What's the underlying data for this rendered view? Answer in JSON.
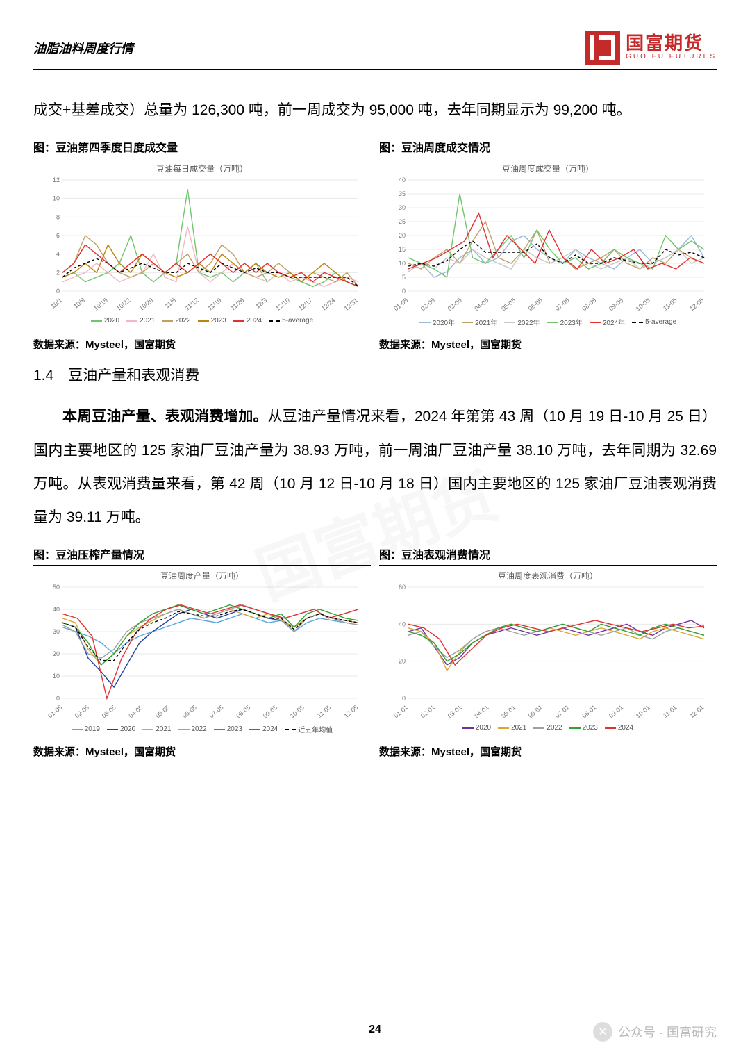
{
  "header": {
    "title": "油脂油料周度行情",
    "logo_cn": "国富期货",
    "logo_en": "GUO FU FUTURES"
  },
  "intro_text": "成交+基差成交）总量为 126,300 吨，前一周成交为 95,000 吨，去年同期显示为 99,200 吨。",
  "section_1_4": "1.4　豆油产量和表观消费",
  "para2_bold": "本周豆油产量、表观消费增加。",
  "para2_rest": "从豆油产量情况来看，2024 年第第 43 周（10 月 19 日-10 月 25 日）国内主要地区的 125 家油厂豆油产量为 38.93 万吨，前一周油厂豆油产量 38.10 万吨，去年同期为 32.69 万吨。从表观消费量来看，第 42 周（10 月 12 日-10 月 18 日）国内主要地区的 125 家油厂豆油表观消费量为 39.11 万吨。",
  "chart1": {
    "title": "图：豆油第四季度日度成交量",
    "subtitle": "豆油每日成交量（万吨）",
    "source": "数据来源：Mysteel，国富期货",
    "type": "line",
    "ylim": [
      0,
      12
    ],
    "ytick_step": 2,
    "x_labels": [
      "10/1",
      "10/8",
      "10/15",
      "10/22",
      "10/29",
      "11/5",
      "11/12",
      "11/19",
      "11/26",
      "12/3",
      "12/10",
      "12/17",
      "12/24",
      "12/31"
    ],
    "colors": {
      "2020": "#70c46c",
      "2021": "#f4b6c2",
      "2022": "#c0a060",
      "2023": "#b8860b",
      "2024": "#e03030",
      "5-average": "#000000"
    },
    "legend": [
      "2020",
      "2021",
      "2022",
      "2023",
      "2024",
      "5-average"
    ],
    "series": {
      "2020": [
        1.5,
        2,
        1,
        1.5,
        2,
        3,
        6,
        2,
        1,
        2,
        3,
        11,
        2,
        1.5,
        2,
        1,
        2,
        3,
        1,
        2,
        1.5,
        1,
        0.5,
        1,
        2,
        1,
        0.5
      ],
      "2021": [
        1,
        1.5,
        2,
        3,
        2,
        1,
        1.5,
        2,
        4,
        1.5,
        1,
        7,
        2,
        1,
        2,
        3,
        2,
        1.5,
        1,
        2,
        1,
        1.5,
        1,
        0.5,
        1,
        1.5,
        1
      ],
      "2022": [
        2,
        3,
        6,
        5,
        3,
        2,
        1.5,
        2,
        3,
        2,
        3,
        4,
        2,
        3,
        5,
        4,
        2,
        1.5,
        2,
        3,
        2,
        1,
        2,
        1.5,
        1,
        2,
        0.5
      ],
      "2023": [
        1.5,
        2,
        3,
        2,
        5,
        3,
        2,
        4,
        3,
        2,
        1.5,
        2,
        3,
        2,
        4,
        3,
        2,
        3,
        2,
        1.5,
        2,
        1,
        2,
        3,
        2,
        1,
        0.5
      ],
      "2024": [
        2,
        3,
        5,
        4,
        3,
        2,
        3,
        4,
        3,
        2,
        3,
        2,
        3,
        4,
        3,
        2,
        3,
        2,
        3,
        2,
        1.5,
        2,
        1,
        2,
        1.5,
        1,
        0.5
      ],
      "5-average": [
        1.5,
        2.5,
        3,
        3.5,
        3,
        2,
        2.5,
        3,
        2.5,
        2,
        2,
        3,
        2.5,
        2,
        3,
        2.5,
        2,
        2.5,
        2,
        2,
        1.5,
        1.5,
        1.5,
        1.5,
        1.5,
        1.5,
        0.5
      ]
    }
  },
  "chart2": {
    "title": "图：豆油周度成交情况",
    "subtitle": "豆油周度成交量（万吨）",
    "source": "数据来源：Mysteel，国富期货",
    "type": "line",
    "ylim": [
      0,
      40
    ],
    "ytick_step": 5,
    "x_labels": [
      "01-05",
      "02-05",
      "03-05",
      "04-05",
      "05-05",
      "06-05",
      "07-05",
      "08-05",
      "09-05",
      "10-05",
      "11-05",
      "12-05"
    ],
    "colors": {
      "2020年": "#9bb8d9",
      "2021年": "#c0a060",
      "2022年": "#c8c8c8",
      "2023年": "#70c46c",
      "2024年": "#e03030",
      "5-average": "#000000"
    },
    "legend": [
      "2020年",
      "2021年",
      "2022年",
      "2023年",
      "2024年",
      "5-average"
    ],
    "series": {
      "2020年": [
        8,
        10,
        5,
        7,
        12,
        15,
        10,
        12,
        18,
        20,
        15,
        12,
        10,
        15,
        12,
        10,
        8,
        12,
        15,
        10,
        12,
        15,
        20,
        12
      ],
      "2021年": [
        10,
        8,
        12,
        15,
        10,
        18,
        25,
        12,
        10,
        15,
        22,
        10,
        12,
        8,
        10,
        12,
        15,
        10,
        8,
        12,
        10,
        15,
        12,
        10
      ],
      "2022年": [
        7,
        10,
        8,
        12,
        10,
        15,
        12,
        10,
        8,
        15,
        12,
        10,
        12,
        15,
        10,
        8,
        10,
        12,
        8,
        10,
        12,
        15,
        10,
        12
      ],
      "2023年": [
        12,
        10,
        8,
        5,
        35,
        12,
        10,
        15,
        20,
        12,
        22,
        15,
        10,
        12,
        8,
        10,
        15,
        12,
        10,
        8,
        20,
        15,
        18,
        15
      ],
      "2024年": [
        8,
        10,
        12,
        15,
        18,
        28,
        12,
        20,
        15,
        10,
        22,
        12,
        8,
        15,
        10,
        12,
        15,
        8,
        10,
        8,
        12,
        10
      ],
      "5-average": [
        9,
        10,
        9,
        11,
        15,
        18,
        14,
        14,
        14,
        14,
        17,
        12,
        10,
        13,
        10,
        10,
        12,
        11,
        10,
        10,
        15,
        13,
        14,
        12
      ]
    }
  },
  "chart3": {
    "title": "图：豆油压榨产量情况",
    "subtitle": "豆油周度产量（万吨）",
    "source": "数据来源：Mysteel，国富期货",
    "type": "line",
    "ylim": [
      0,
      50
    ],
    "ytick_step": 10,
    "x_labels": [
      "01-05",
      "02-05",
      "03-05",
      "04-05",
      "05-05",
      "06-05",
      "07-05",
      "08-05",
      "09-05",
      "10-05",
      "11-05",
      "12-05"
    ],
    "colors": {
      "2019": "#5aa5d8",
      "2020": "#2040a0",
      "2021": "#d8a838",
      "2022": "#a0a0a0",
      "2023": "#30a030",
      "2024": "#e03030",
      "近五年均值": "#000000"
    },
    "legend": [
      "2019",
      "2020",
      "2021",
      "2022",
      "2023",
      "2024",
      "近五年均值"
    ],
    "series": {
      "2019": [
        32,
        30,
        28,
        25,
        20,
        25,
        28,
        30,
        32,
        34,
        36,
        35,
        34,
        36,
        38,
        36,
        34,
        35,
        30,
        34,
        36,
        35,
        34,
        33
      ],
      "2020": [
        34,
        32,
        18,
        12,
        5,
        15,
        25,
        30,
        34,
        38,
        40,
        38,
        36,
        38,
        40,
        38,
        36,
        35,
        32,
        36,
        38,
        36,
        35,
        34
      ],
      "2021": [
        36,
        34,
        22,
        15,
        20,
        28,
        32,
        35,
        38,
        40,
        38,
        36,
        38,
        40,
        38,
        36,
        38,
        35,
        32,
        36,
        38,
        36,
        35,
        34
      ],
      "2022": [
        33,
        30,
        20,
        18,
        22,
        30,
        34,
        36,
        38,
        40,
        38,
        36,
        38,
        40,
        42,
        40,
        38,
        36,
        30,
        36,
        38,
        36,
        34,
        33
      ],
      "2023": [
        34,
        32,
        25,
        15,
        20,
        28,
        34,
        38,
        40,
        42,
        40,
        38,
        40,
        42,
        40,
        38,
        36,
        38,
        32,
        38,
        40,
        38,
        36,
        35
      ],
      "2024": [
        38,
        36,
        28,
        0,
        18,
        30,
        36,
        40,
        42,
        40,
        38,
        40,
        42,
        40,
        38,
        36,
        38,
        40,
        36,
        38,
        40
      ],
      "近五年均值": [
        34,
        32,
        23,
        17,
        17,
        25,
        31,
        34,
        36,
        39,
        38,
        37,
        37,
        39,
        40,
        38,
        36,
        36,
        31,
        36,
        38,
        36,
        35,
        34
      ]
    }
  },
  "chart4": {
    "title": "图：豆油表观消费情况",
    "subtitle": "豆油周度表观消费（万吨）",
    "source": "数据来源：Mysteel，国富期货",
    "type": "line",
    "ylim": [
      0,
      60
    ],
    "ytick_step": 20,
    "x_labels": [
      "01-01",
      "02-01",
      "03-01",
      "04-01",
      "05-01",
      "06-01",
      "07-01",
      "08-01",
      "09-01",
      "10-01",
      "11-01",
      "12-01"
    ],
    "colors": {
      "2020": "#7030a0",
      "2021": "#d8a838",
      "2022": "#a0a0a0",
      "2023": "#30a030",
      "2024": "#e03030"
    },
    "legend": [
      "2020",
      "2021",
      "2022",
      "2023",
      "2024"
    ],
    "series": {
      "2020": [
        36,
        38,
        28,
        18,
        22,
        30,
        34,
        36,
        38,
        36,
        34,
        36,
        38,
        36,
        34,
        36,
        38,
        40,
        36,
        34,
        38,
        40,
        42,
        38
      ],
      "2021": [
        38,
        36,
        30,
        15,
        25,
        32,
        36,
        38,
        40,
        38,
        36,
        38,
        36,
        34,
        36,
        38,
        36,
        34,
        32,
        36,
        38,
        36,
        34,
        32
      ],
      "2022": [
        34,
        36,
        28,
        22,
        26,
        32,
        36,
        38,
        36,
        34,
        36,
        38,
        40,
        38,
        36,
        34,
        36,
        38,
        34,
        32,
        36,
        38,
        36,
        34
      ],
      "2023": [
        36,
        34,
        30,
        20,
        24,
        30,
        34,
        38,
        40,
        38,
        36,
        38,
        40,
        38,
        36,
        40,
        38,
        36,
        34,
        38,
        40,
        38,
        36,
        34
      ],
      "2024": [
        40,
        38,
        32,
        18,
        26,
        34,
        38,
        40,
        38,
        36,
        38,
        40,
        42,
        40,
        38,
        36,
        38,
        40,
        38,
        39
      ]
    }
  },
  "page_number": "24",
  "footer": {
    "label": "公众号 · 国富研究",
    "icon": "✕"
  },
  "watermark": "国富期货"
}
